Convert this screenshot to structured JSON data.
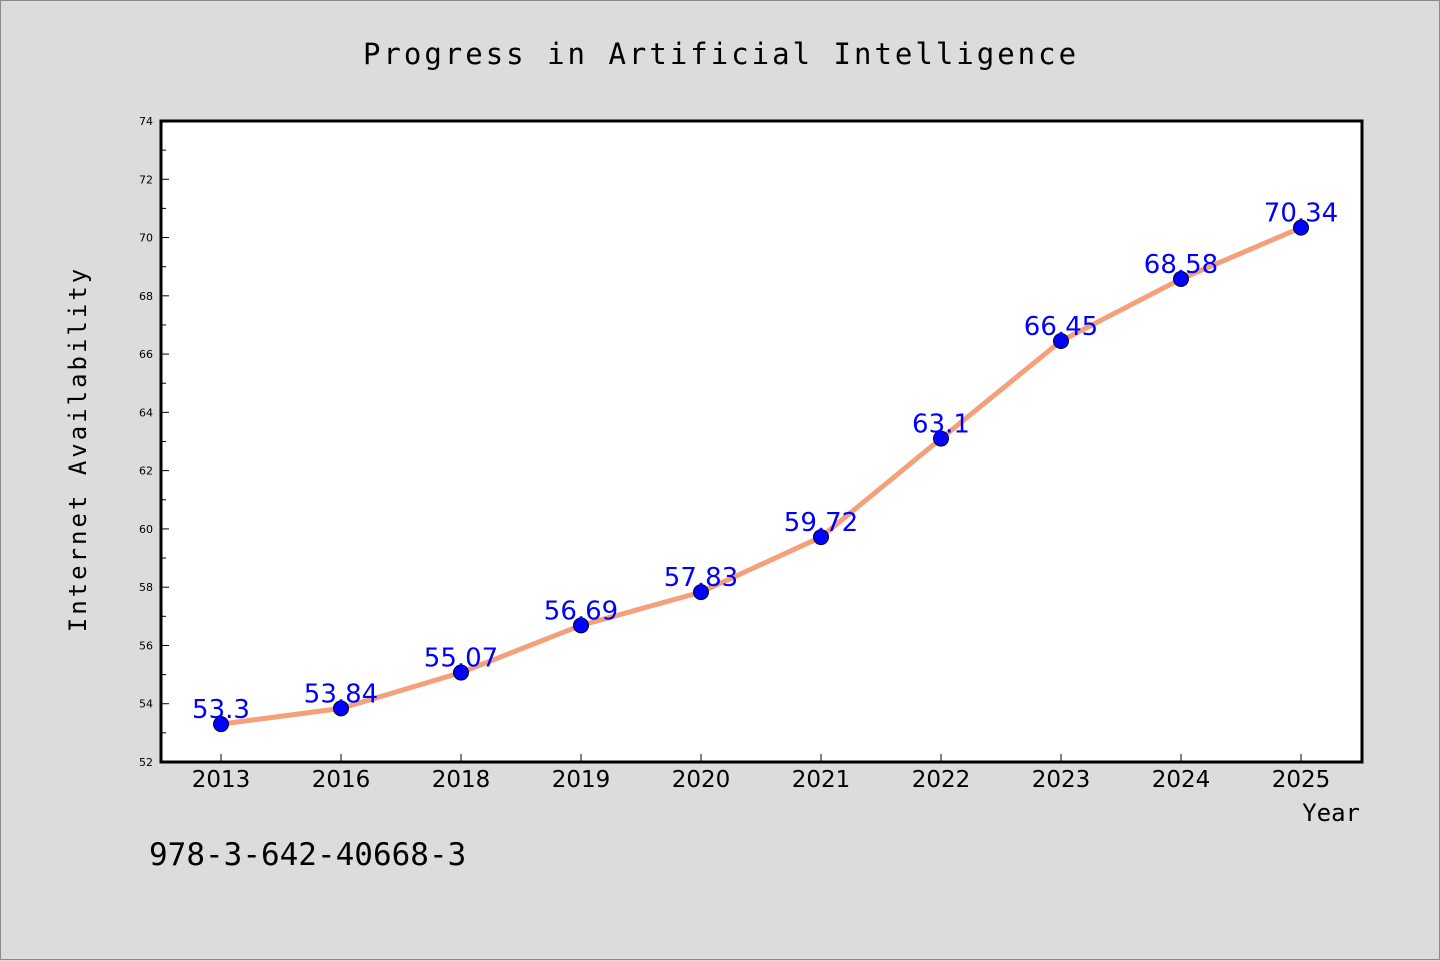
{
  "chart_data": {
    "type": "line",
    "title": "Progress in Artificial Intelligence",
    "xlabel": "Year",
    "ylabel": "Internet Availability",
    "categories": [
      "2013",
      "2016",
      "2018",
      "2019",
      "2020",
      "2021",
      "2022",
      "2023",
      "2024",
      "2025"
    ],
    "series": [
      {
        "values": [
          53.3,
          53.84,
          55.07,
          56.69,
          57.83,
          59.72,
          63.1,
          66.45,
          68.58,
          70.34
        ],
        "labels": [
          "53.3",
          "53.84",
          "55.07",
          "56.69",
          "57.83",
          "59.72",
          "63.1",
          "66.45",
          "68.58",
          "70.34"
        ],
        "line_color": "#f4a07a",
        "marker_color": "#0000ff"
      }
    ],
    "ylim": [
      52,
      74
    ],
    "yticks": [
      52,
      54,
      56,
      58,
      60,
      62,
      64,
      66,
      68,
      70,
      72,
      74
    ],
    "ytick_labels": [
      "52",
      "54",
      "56",
      "58",
      "60",
      "62",
      "64",
      "66",
      "68",
      "70",
      "72",
      "74"
    ],
    "grid": false,
    "legend": "none"
  },
  "annotation": {
    "isbn": "978-3-642-40668-3"
  },
  "colors": {
    "figure_background": "#dcdcdc",
    "plot_background": "#ffffff",
    "axis_color": "#000000",
    "label_color": "#0000ff"
  }
}
